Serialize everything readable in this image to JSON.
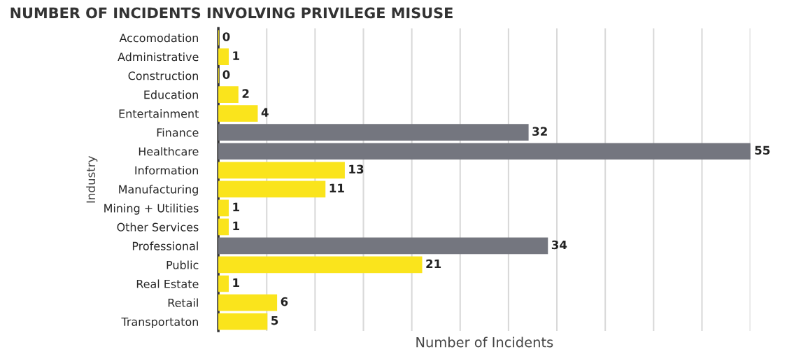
{
  "chart_data": {
    "type": "bar",
    "orientation": "horizontal",
    "title": "NUMBER OF INCIDENTS INVOLVING PRIVILEGE MISUSE",
    "xlabel": "Number of Incidents",
    "ylabel": "Industry",
    "categories": [
      "Accomodation",
      "Administrative",
      "Construction",
      "Education",
      "Entertainment",
      "Finance",
      "Healthcare",
      "Information",
      "Manufacturing",
      "Mining + Utilities",
      "Other Services",
      "Professional",
      "Public",
      "Real Estate",
      "Retail",
      "Transportaton"
    ],
    "values": [
      0,
      1,
      0,
      2,
      4,
      32,
      55,
      13,
      11,
      1,
      1,
      34,
      21,
      1,
      6,
      5
    ],
    "colors": [
      "#fae41c",
      "#fae41c",
      "#fae41c",
      "#fae41c",
      "#fae41c",
      "#74767f",
      "#74767f",
      "#fae41c",
      "#fae41c",
      "#fae41c",
      "#fae41c",
      "#74767f",
      "#fae41c",
      "#fae41c",
      "#fae41c",
      "#fae41c"
    ],
    "xlim": [
      0,
      55
    ],
    "xticks": [
      {
        "value": 0,
        "label": null
      },
      {
        "value": 5,
        "label": null
      },
      {
        "value": 10,
        "label": null
      },
      {
        "value": 15,
        "label": null
      },
      {
        "value": 20,
        "label": null
      },
      {
        "value": 25,
        "label": null
      },
      {
        "value": 30,
        "label": null
      },
      {
        "value": 35,
        "label": null
      },
      {
        "value": 40,
        "label": null
      },
      {
        "value": 45,
        "label": null
      },
      {
        "value": 50,
        "label": null
      },
      {
        "value": 55,
        "label": null
      }
    ],
    "grid": "x",
    "tick_labels": "y",
    "data_labels": true,
    "legend": false
  }
}
